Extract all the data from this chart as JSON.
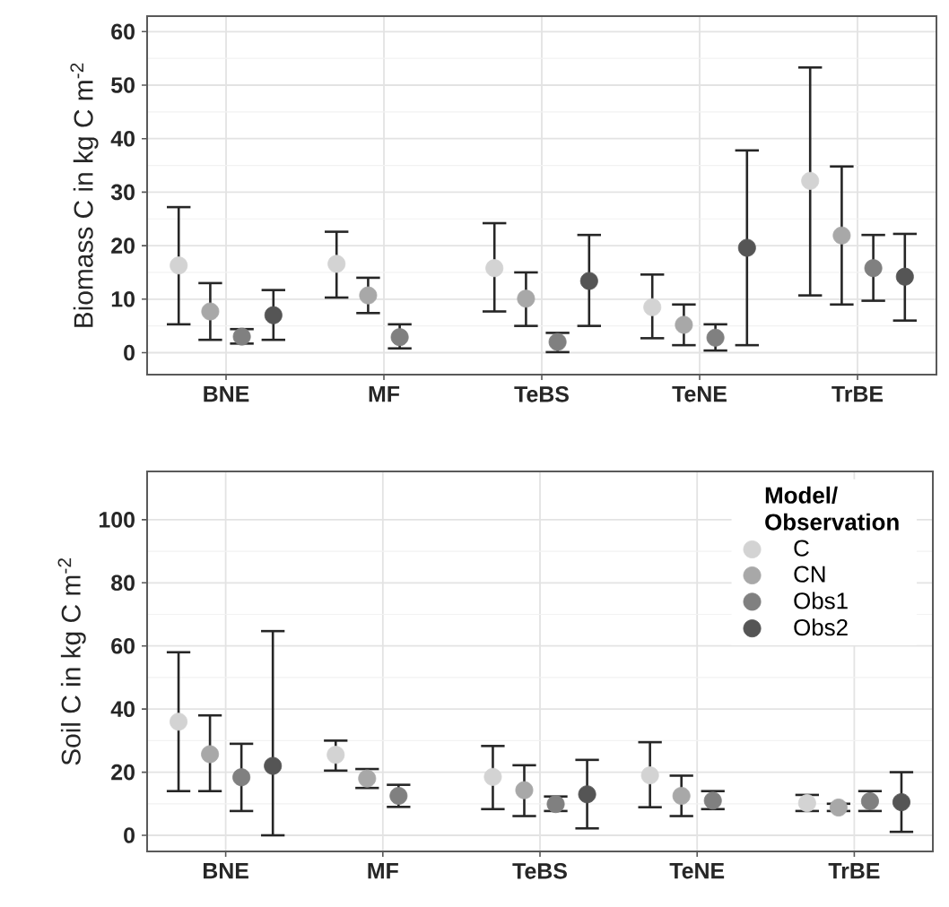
{
  "chart_data": [
    {
      "type": "scatter",
      "ylabel": "Biomass C in kg C m$^{-2}$",
      "categories": [
        "BNE",
        "MF",
        "TeBS",
        "TeNE",
        "TrBE"
      ],
      "ylim": [
        -4.1,
        62.9
      ],
      "yticks": [
        0,
        10,
        20,
        30,
        40,
        50,
        60
      ],
      "grid": true,
      "marker": "circle",
      "legend": false,
      "series": [
        {
          "color": "#d3d3d3",
          "values": [
            16.3,
            16.6,
            15.8,
            8.5,
            32.1
          ],
          "errors": [
            [
              5.3,
              27.2
            ],
            [
              10.3,
              22.6
            ],
            [
              7.7,
              24.2
            ],
            [
              2.7,
              14.6
            ],
            [
              10.7,
              53.3
            ]
          ]
        },
        {
          "color": "#a8a8a8",
          "values": [
            7.7,
            10.7,
            10.1,
            5.2,
            21.9
          ],
          "errors": [
            [
              2.4,
              13
            ],
            [
              7.4,
              14
            ],
            [
              5,
              15
            ],
            [
              1.4,
              9
            ],
            [
              9,
              34.8
            ]
          ]
        },
        {
          "color": "#808080",
          "values": [
            3,
            2.9,
            2,
            2.8,
            15.8
          ],
          "errors": [
            [
              1.7,
              4.4
            ],
            [
              0.8,
              5.3
            ],
            [
              0.1,
              3.7
            ],
            [
              0.4,
              5.3
            ],
            [
              9.7,
              22
            ]
          ]
        },
        {
          "color": "#555555",
          "values": [
            7,
            null,
            13.4,
            19.6,
            14.2
          ],
          "errors": [
            [
              2.4,
              11.7
            ],
            null,
            [
              5,
              22
            ],
            [
              1.4,
              37.8
            ],
            [
              6,
              22.2
            ]
          ]
        }
      ]
    },
    {
      "type": "scatter",
      "ylabel": "Soil C in kg C m$^{-2}$",
      "legend_title": "Model/ Observation",
      "categories": [
        "BNE",
        "MF",
        "TeBS",
        "TeNE",
        "TrBE"
      ],
      "ylim": [
        -5.1,
        115.3
      ],
      "yticks": [
        0,
        20,
        40,
        60,
        80,
        100
      ],
      "grid": true,
      "marker": "circle",
      "legend": "top right",
      "series": [
        {
          "name": "C",
          "color": "#d3d3d3",
          "values": [
            36,
            25.5,
            18.5,
            19,
            10.2
          ],
          "errors": [
            [
              14,
              58
            ],
            [
              20.5,
              30
            ],
            [
              8.3,
              28.3
            ],
            [
              8.9,
              29.5
            ],
            [
              7.7,
              12.8
            ]
          ]
        },
        {
          "name": "CN",
          "color": "#a8a8a8",
          "values": [
            25.7,
            18,
            14.3,
            12.5,
            8.8
          ],
          "errors": [
            [
              14,
              38
            ],
            [
              15,
              21
            ],
            [
              6.1,
              22.2
            ],
            [
              6.1,
              18.9
            ],
            [
              7.7,
              10
            ]
          ]
        },
        {
          "name": "Obs1",
          "color": "#808080",
          "values": [
            18.4,
            12.5,
            9.9,
            11,
            10.8
          ],
          "errors": [
            [
              7.7,
              29
            ],
            [
              9,
              16
            ],
            [
              7.7,
              12.3
            ],
            [
              8.3,
              14
            ],
            [
              7.7,
              14
            ]
          ]
        },
        {
          "name": "Obs2",
          "color": "#555555",
          "values": [
            22,
            null,
            13,
            null,
            10.5
          ],
          "errors": [
            [
              0,
              64.7
            ],
            null,
            [
              2.2,
              23.9
            ],
            null,
            [
              1.1,
              20
            ]
          ]
        }
      ]
    }
  ]
}
